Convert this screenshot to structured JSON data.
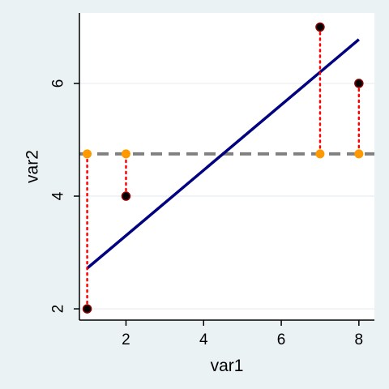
{
  "chart_data": {
    "type": "scatter",
    "xlabel": "var1",
    "ylabel": "var2",
    "xlim": [
      0.8,
      8.4
    ],
    "ylim": [
      1.8,
      7.25
    ],
    "xticks": [
      2,
      4,
      6,
      8
    ],
    "yticks": [
      2,
      4,
      6
    ],
    "grid": "horizontal",
    "points": [
      {
        "x": 1,
        "y": 2
      },
      {
        "x": 2,
        "y": 4
      },
      {
        "x": 7,
        "y": 7
      },
      {
        "x": 8,
        "y": 6
      }
    ],
    "mean_y": 4.75,
    "fit_line": {
      "x": [
        1,
        8
      ],
      "y": [
        2.72,
        6.78
      ]
    },
    "colors": {
      "background": "#eaf2f3",
      "plot_background": "#ffffff",
      "observed": "#000000",
      "observed_outline": "#8b0000",
      "mean_points": "#ff9900",
      "mean_line": "#808080",
      "fit_line": "#000080",
      "residual_lines": "#ff0000",
      "grid": "#e8eef0"
    }
  }
}
